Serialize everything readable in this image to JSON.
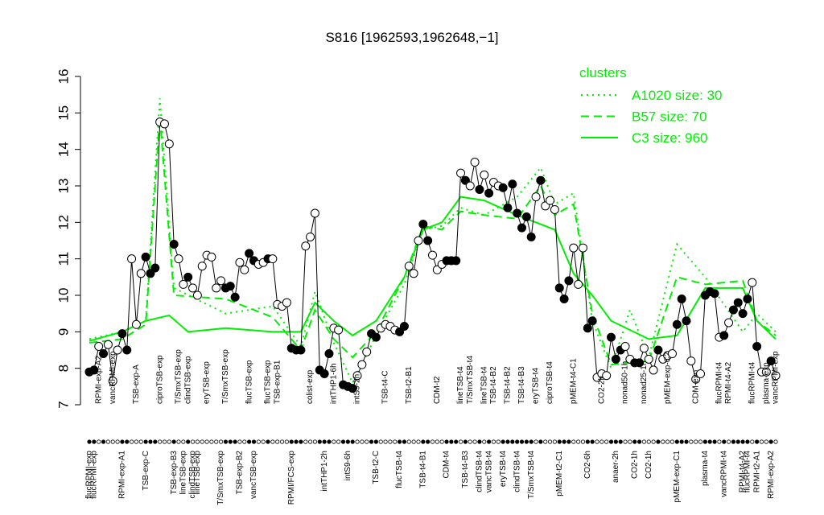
{
  "chart_data": {
    "type": "line",
    "title": "S816 [1962593,1962648,−1]",
    "ylim": [
      7,
      16
    ],
    "yticks": [
      7,
      8,
      9,
      10,
      11,
      12,
      13,
      14,
      15,
      16
    ],
    "legend_title": "clusters",
    "legend_position": "top-right",
    "categories": [
      "flucRPMI-exp",
      "flucRPMI-exp",
      null,
      null,
      null,
      null,
      null,
      "RPMI-exp-A1",
      null,
      null,
      null,
      null,
      "TSB-exp-C",
      null,
      null,
      null,
      null,
      null,
      "TSB-exp-B3",
      null,
      "lineTSB-exp",
      null,
      "clindTSB-exp",
      "lineTSB-exp",
      null,
      null,
      null,
      null,
      "T/SmxTSB-exp",
      null,
      null,
      null,
      "TSB-exp-B2",
      null,
      null,
      "vancTSB-exp",
      null,
      null,
      null,
      null,
      null,
      null,
      null,
      "RPMI/FCS-exp",
      null,
      null,
      null,
      null,
      null,
      null,
      "intTHP1-2h",
      null,
      null,
      null,
      null,
      "intS9-6h",
      null,
      null,
      null,
      null,
      null,
      "TSB-t2-C",
      null,
      null,
      null,
      null,
      "flucTSB-t4",
      null,
      null,
      null,
      null,
      "TSB-t4-B1",
      null,
      null,
      null,
      null,
      "CDM-t4",
      null,
      null,
      null,
      "TSB-t4-B3",
      null,
      null,
      "clindTSB-t4",
      null,
      "vancTSB-t4",
      null,
      null,
      "eryTSB-t4",
      null,
      null,
      "clindTSB-t4",
      null,
      null,
      "T/SmxTSB-t4",
      null,
      null,
      null,
      null,
      null,
      "pMEM-t2-C1",
      null,
      null,
      null,
      null,
      null,
      "CO2-6h",
      null,
      null,
      null,
      null,
      null,
      "anaer-2h",
      null,
      null,
      null,
      "CO2-1h",
      null,
      null,
      "CO2-1h",
      null,
      null,
      null,
      null,
      null,
      "pMEM-exp-C1",
      null,
      null,
      null,
      null,
      null,
      "plasma-t4",
      null,
      null,
      null,
      "vancRPMI-t4",
      null,
      null,
      null,
      "RPMI-t4-A2",
      "flucRPMI-t4",
      null,
      "RPMI-t2-A1",
      null,
      null,
      "RPMI-exp-A2",
      null
    ],
    "categories_top": [
      null,
      null,
      "RPMI-exp-A2",
      null,
      null,
      "vancRPMI-exp",
      null,
      null,
      null,
      null,
      "TSB-exp-A",
      null,
      null,
      null,
      null,
      "ciproTSB-exp",
      null,
      null,
      null,
      "T/SmxTSB-exp",
      null,
      "clindTSB-exp",
      null,
      null,
      null,
      "eryTSB-exp",
      null,
      null,
      null,
      "T/SmxTSB-exp",
      null,
      null,
      null,
      null,
      "flucTSB-exp",
      null,
      null,
      null,
      "flucTSB-exp",
      null,
      "TSB-exp-B1",
      null,
      null,
      null,
      null,
      null,
      null,
      "colist-exp",
      null,
      null,
      null,
      null,
      "intTHP1-6h",
      null,
      null,
      null,
      null,
      "intS9-2h",
      null,
      null,
      null,
      null,
      null,
      "TSB-t4-C",
      null,
      null,
      null,
      null,
      "TSB-t2-B1",
      null,
      null,
      null,
      null,
      null,
      "CDM-t2",
      null,
      null,
      null,
      null,
      "lineTSB-t4",
      null,
      "T/SmxTSB-t4",
      null,
      null,
      "lineTSB-t4",
      null,
      "TSB-t4-B2",
      null,
      null,
      "TSB-t4-B2",
      null,
      null,
      "TSB-t4-B3",
      null,
      null,
      "eryTSB-t4",
      null,
      null,
      "ciproTSB-t4",
      null,
      null,
      null,
      null,
      "pMEM-t4-C1",
      null,
      null,
      null,
      null,
      null,
      "CO2-2h",
      null,
      null,
      null,
      null,
      "nonad50-1h",
      null,
      null,
      null,
      "nonad25-1h",
      null,
      null,
      null,
      null,
      "pMEM-exp-C2",
      null,
      null,
      null,
      null,
      null,
      "CDM-exp",
      null,
      null,
      null,
      null,
      "flucRPMI-t4",
      null,
      "RPMI-t4-A2",
      null,
      null,
      null,
      null,
      "flucRPMI-t4",
      null,
      null,
      "plasma-exp",
      null,
      "vancRPMI-exp"
    ],
    "values": [
      7.9,
      7.95,
      8.6,
      8.4,
      8.65,
      7.65,
      8.5,
      8.95,
      8.5,
      11.0,
      9.2,
      10.6,
      11.05,
      10.6,
      10.75,
      14.75,
      14.7,
      14.15,
      11.4,
      11.0,
      10.3,
      10.5,
      10.2,
      10.0,
      10.8,
      11.1,
      11.05,
      10.2,
      10.4,
      10.2,
      10.25,
      9.95,
      10.9,
      10.7,
      11.15,
      10.95,
      10.85,
      10.9,
      11.0,
      11.0,
      9.75,
      9.7,
      9.8,
      8.55,
      8.5,
      8.5,
      11.35,
      11.6,
      12.25,
      7.95,
      7.85,
      8.4,
      9.1,
      9.05,
      7.55,
      7.5,
      7.45,
      7.8,
      8.1,
      8.45,
      8.95,
      8.85,
      9.1,
      9.2,
      9.15,
      9.05,
      9.0,
      9.15,
      10.8,
      10.6,
      11.5,
      11.95,
      11.5,
      11.1,
      10.7,
      10.85,
      10.95,
      10.95,
      10.95,
      13.35,
      13.15,
      13.0,
      13.65,
      12.9,
      13.3,
      12.8,
      13.1,
      13.0,
      12.95,
      12.4,
      13.05,
      12.25,
      11.85,
      12.15,
      11.6,
      12.7,
      13.15,
      12.45,
      12.6,
      12.35,
      10.2,
      9.9,
      10.4,
      11.3,
      10.3,
      11.3,
      9.1,
      9.3,
      7.75,
      7.85,
      7.8,
      8.85,
      8.25,
      8.5,
      8.6,
      8.25,
      8.15,
      8.15,
      8.55,
      8.25,
      7.95,
      8.5,
      8.25,
      8.35,
      8.4,
      9.2,
      9.9,
      9.3,
      8.2,
      7.7,
      7.85,
      10.0,
      10.1,
      10.05,
      8.85,
      8.9,
      9.25,
      9.6,
      9.8,
      9.5,
      9.9,
      10.35,
      8.6,
      7.9,
      7.9,
      8.2,
      7.8
    ],
    "filled": [
      true,
      true,
      false,
      true,
      false,
      false,
      false,
      true,
      true,
      false,
      false,
      false,
      true,
      true,
      true,
      false,
      false,
      false,
      true,
      false,
      false,
      true,
      false,
      false,
      false,
      false,
      false,
      false,
      false,
      true,
      true,
      true,
      false,
      false,
      true,
      true,
      false,
      false,
      true,
      false,
      false,
      false,
      false,
      true,
      true,
      true,
      false,
      false,
      false,
      true,
      true,
      true,
      false,
      false,
      true,
      true,
      true,
      false,
      false,
      false,
      true,
      true,
      false,
      false,
      false,
      false,
      true,
      true,
      false,
      false,
      false,
      true,
      true,
      false,
      false,
      false,
      true,
      true,
      true,
      false,
      true,
      false,
      false,
      true,
      false,
      true,
      false,
      false,
      true,
      true,
      true,
      true,
      true,
      true,
      true,
      false,
      true,
      false,
      false,
      false,
      true,
      true,
      true,
      false,
      false,
      false,
      true,
      true,
      false,
      false,
      false,
      true,
      true,
      true,
      false,
      false,
      true,
      true,
      false,
      false,
      false,
      true,
      false,
      false,
      false,
      true,
      true,
      true,
      false,
      false,
      false,
      true,
      true,
      true,
      false,
      true,
      false,
      true,
      true,
      true,
      true,
      false,
      true,
      false,
      false,
      true,
      false
    ],
    "line_color": "#000000",
    "series": [
      {
        "name": "A1020 size: 30",
        "color": "#00ee00",
        "style": "dotted",
        "x": [
          1,
          8,
          13,
          16,
          19,
          30,
          40,
          46,
          49,
          53,
          57,
          62,
          68,
          72,
          76,
          80,
          85,
          92,
          97,
          100,
          104,
          108,
          112,
          116,
          120,
          126,
          132,
          140,
          143,
          147
        ],
        "values": [
          8.8,
          9.0,
          9.3,
          15.4,
          10.2,
          9.5,
          9.7,
          8.6,
          10.1,
          8.7,
          7.6,
          8.9,
          10.3,
          11.8,
          11.9,
          12.4,
          12.2,
          12.7,
          13.5,
          12.5,
          12.8,
          9.3,
          8.0,
          9.6,
          8.3,
          11.4,
          10.5,
          9.0,
          9.5,
          9.0
        ]
      },
      {
        "name": "B57 size: 70",
        "color": "#00ee00",
        "style": "dashed",
        "x": [
          1,
          8,
          13,
          16,
          19,
          30,
          40,
          46,
          49,
          53,
          57,
          62,
          68,
          72,
          76,
          80,
          85,
          92,
          97,
          100,
          104,
          108,
          112,
          120,
          126,
          132,
          140,
          143,
          147
        ],
        "values": [
          8.7,
          8.8,
          9.2,
          14.9,
          10.0,
          9.9,
          9.4,
          8.5,
          9.6,
          8.8,
          8.3,
          9.0,
          10.5,
          11.9,
          11.8,
          12.3,
          12.2,
          12.1,
          13.0,
          12.2,
          12.5,
          9.5,
          8.1,
          8.2,
          10.5,
          10.3,
          10.4,
          9.3,
          8.9
        ]
      },
      {
        "name": "C3 size: 960",
        "color": "#00ee00",
        "style": "solid",
        "x": [
          1,
          8,
          13,
          18,
          22,
          30,
          40,
          46,
          49,
          53,
          57,
          62,
          68,
          72,
          76,
          80,
          85,
          92,
          100,
          104,
          108,
          112,
          120,
          126,
          132,
          140,
          143,
          147
        ],
        "values": [
          8.75,
          9.0,
          9.3,
          9.45,
          9.0,
          9.1,
          9.0,
          9.0,
          9.8,
          9.3,
          8.9,
          9.3,
          10.5,
          11.8,
          12.0,
          12.7,
          12.6,
          12.2,
          11.8,
          10.6,
          10.0,
          9.3,
          8.8,
          8.9,
          10.2,
          10.2,
          9.3,
          8.8
        ]
      }
    ]
  }
}
